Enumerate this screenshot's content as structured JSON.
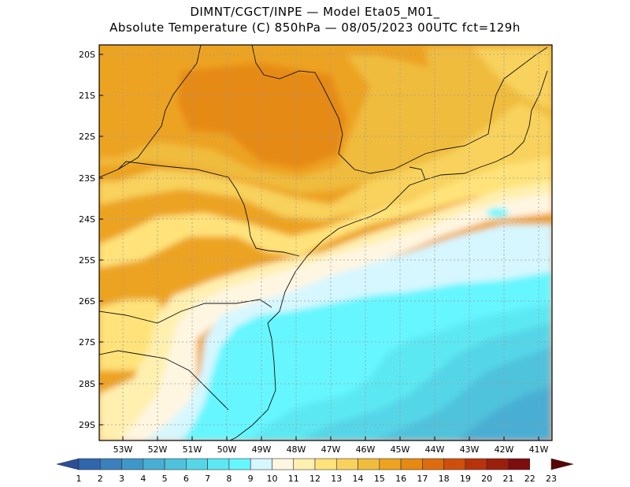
{
  "header": {
    "line1": "DIMNT/CGCT/INPE —  Model Eta05_M01_",
    "line2": "Absolute Temperature (C) 850hPa —  08/05/2023 00UTC fct=129h"
  },
  "map": {
    "lat_labels": [
      "20S",
      "21S",
      "22S",
      "23S",
      "24S",
      "25S",
      "26S",
      "27S",
      "28S",
      "29S"
    ],
    "lon_labels": [
      "53W",
      "52W",
      "51W",
      "50W",
      "49W",
      "48W",
      "47W",
      "46W",
      "45W",
      "44W",
      "43W",
      "42W",
      "41W"
    ]
  },
  "colorbar": {
    "labels": [
      "1",
      "2",
      "3",
      "4",
      "5",
      "6",
      "7",
      "8",
      "9",
      "10",
      "11",
      "12",
      "13",
      "14",
      "15",
      "16",
      "17",
      "18",
      "19",
      "20",
      "21",
      "22",
      "23"
    ],
    "colors": [
      "#2a4f9a",
      "#2f66ac",
      "#3a80bd",
      "#3f97c9",
      "#48aed4",
      "#4fc2dc",
      "#55d6e8",
      "#5ce8f2",
      "#66f6ff",
      "#d6f7ff",
      "#fff6e2",
      "#fff0b0",
      "#ffe37a",
      "#f8d25c",
      "#f0bc3c",
      "#eda320",
      "#e68a12",
      "#df6c0c",
      "#cf4f0a",
      "#b8330a",
      "#9c1e0c",
      "#7e0d0d",
      "#5a0505"
    ]
  }
}
